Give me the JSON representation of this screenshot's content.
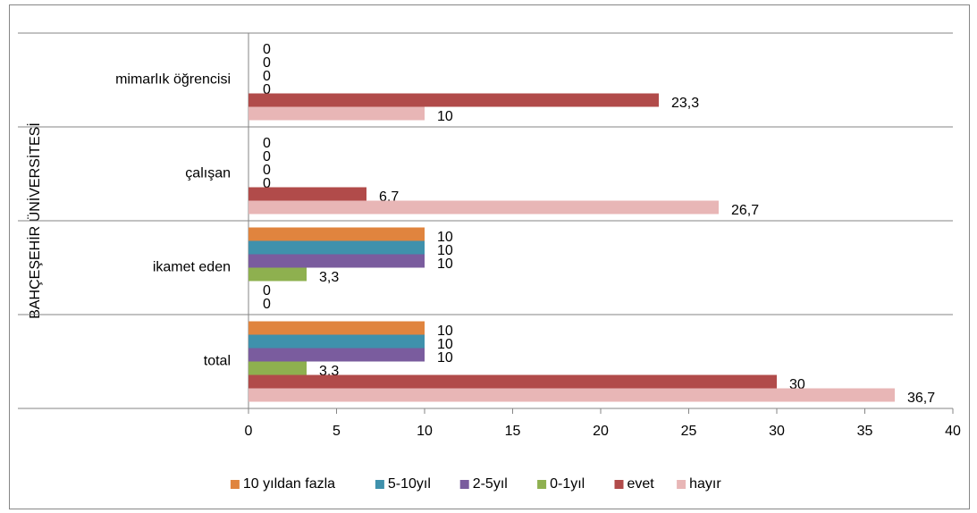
{
  "chart_data": {
    "type": "hbar",
    "category_group": "BAHÇEŞEHİR ÜNİVERSİTESİ",
    "categories": [
      "mimarlık öğrencisi",
      "çalışan",
      "ikamet eden",
      "total"
    ],
    "series": [
      {
        "name": "10 yıldan fazla",
        "color": "#e0843e",
        "values": [
          0,
          0,
          10,
          10
        ],
        "value_labels": [
          "0",
          "0",
          "10",
          "10"
        ]
      },
      {
        "name": "5-10yıl",
        "color": "#3f91ac",
        "values": [
          0,
          0,
          10,
          10
        ],
        "value_labels": [
          "0",
          "0",
          "10",
          "10"
        ]
      },
      {
        "name": "2-5yıl",
        "color": "#7a5c9e",
        "values": [
          0,
          0,
          10,
          10
        ],
        "value_labels": [
          "0",
          "0",
          "10",
          "10"
        ]
      },
      {
        "name": "0-1yıl",
        "color": "#8eb04f",
        "values": [
          0,
          0,
          3.3,
          3.3
        ],
        "value_labels": [
          "0",
          "0",
          "3,3",
          "3,3"
        ]
      },
      {
        "name": "evet",
        "color": "#b14b4a",
        "values": [
          23.3,
          6.7,
          0,
          30
        ],
        "value_labels": [
          "23,3",
          "6,7",
          "0",
          "30"
        ]
      },
      {
        "name": "hayır",
        "color": "#e8b6b6",
        "values": [
          10,
          26.7,
          0,
          36.7
        ],
        "value_labels": [
          "10",
          "26,7",
          "0",
          "36,7"
        ]
      }
    ],
    "xlim": [
      0,
      40
    ],
    "xticks": [
      0,
      5,
      10,
      15,
      20,
      25,
      30,
      35,
      40
    ],
    "legend": "bottom"
  }
}
